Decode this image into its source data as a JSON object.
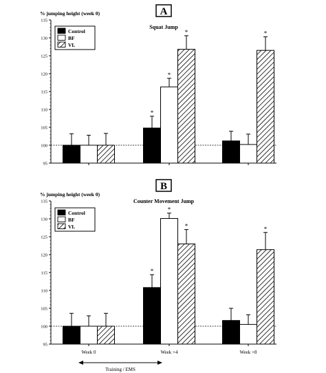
{
  "chart_data": [
    {
      "type": "bar",
      "panel_label": "A",
      "title": "Squat Jump",
      "ylabel": "% jumping height (week 0)",
      "ylim": [
        95,
        135
      ],
      "yticks": [
        95,
        100,
        105,
        110,
        115,
        120,
        125,
        130,
        135
      ],
      "ytick_labels": [
        "95",
        "100",
        "105",
        "110",
        "115",
        "120",
        "125",
        "130",
        "135"
      ],
      "categories": [
        "Week 0",
        "Week +4",
        "Week +8"
      ],
      "show_category_labels": false,
      "reference_line": 100,
      "legend": {
        "position": "top-left"
      },
      "series": [
        {
          "name": "Control",
          "values": [
            100.0,
            104.8,
            101.2
          ],
          "errors": [
            3.2,
            3.3,
            2.7
          ],
          "significant": [
            false,
            true,
            false
          ]
        },
        {
          "name": "BF",
          "values": [
            100.0,
            116.3,
            100.2
          ],
          "errors": [
            2.8,
            2.4,
            2.9
          ],
          "significant": [
            false,
            true,
            false
          ]
        },
        {
          "name": "VL",
          "values": [
            100.0,
            126.8,
            126.5
          ],
          "errors": [
            3.3,
            3.8,
            3.8
          ],
          "significant": [
            false,
            true,
            true
          ]
        }
      ],
      "significance_marker": "*"
    },
    {
      "type": "bar",
      "panel_label": "B",
      "title": "Counter Movement Jump",
      "ylabel": "% jumping height (week 0)",
      "ylim": [
        95,
        135
      ],
      "yticks": [
        95,
        100,
        105,
        110,
        115,
        120,
        125,
        130,
        135
      ],
      "ytick_labels": [
        "95",
        "100",
        "105",
        "110",
        "115",
        "120",
        "125",
        "130",
        "135"
      ],
      "categories": [
        "Week 0",
        "Week +4",
        "Week +8"
      ],
      "show_category_labels": true,
      "reference_line": 100,
      "legend": {
        "position": "top-left"
      },
      "series": [
        {
          "name": "Control",
          "values": [
            100.0,
            110.8,
            101.6
          ],
          "errors": [
            3.6,
            3.6,
            3.4
          ],
          "significant": [
            false,
            true,
            false
          ]
        },
        {
          "name": "BF",
          "values": [
            100.0,
            130.1,
            100.5
          ],
          "errors": [
            2.9,
            1.5,
            2.7
          ],
          "significant": [
            false,
            true,
            false
          ]
        },
        {
          "name": "VL",
          "values": [
            100.0,
            123.0,
            121.4
          ],
          "errors": [
            3.6,
            4.0,
            4.8
          ],
          "significant": [
            false,
            true,
            true
          ]
        }
      ],
      "significance_marker": "*",
      "annotation": "Training / EMS"
    }
  ],
  "colors": {
    "Control": "#000000",
    "BF": "#ffffff",
    "VL": "hatched",
    "axis": "#000000",
    "reference": "#000000"
  }
}
